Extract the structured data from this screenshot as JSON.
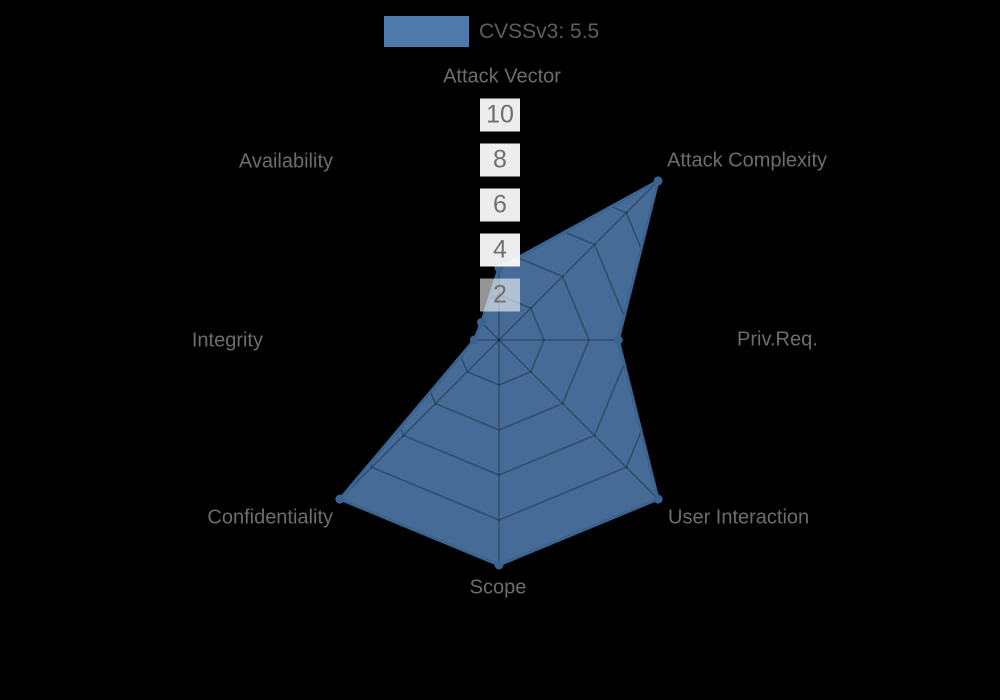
{
  "legend": {
    "label": "CVSSv3: 5.5",
    "swatch_color": "#4e7aab"
  },
  "chart_data": {
    "type": "radar",
    "title": "CVSSv3: 5.5",
    "axes": [
      "Attack Vector",
      "Attack Complexity",
      "Priv.Req.",
      "User Interaction",
      "Scope",
      "Confidentiality",
      "Integrity",
      "Availability"
    ],
    "series": [
      {
        "name": "CVSSv3: 5.5",
        "values": [
          3.2,
          10,
          5.3,
          10,
          10,
          10,
          1.1,
          1.1
        ]
      }
    ],
    "scale": {
      "min": 0,
      "max": 10,
      "tick_values": [
        10,
        8,
        6,
        4,
        2
      ],
      "tick_labels": [
        "10",
        "8",
        "6",
        "4",
        "2"
      ]
    },
    "grid": true,
    "legend_position": "top",
    "colors": {
      "fill": "#4e7aab",
      "fill_opacity": 0.88,
      "line": "#3a648f",
      "grid_line": "rgba(0,0,0,0.27)",
      "label_text": "#6d6d6d",
      "tick_backdrop": "#ffffff",
      "background": "#000000"
    }
  }
}
